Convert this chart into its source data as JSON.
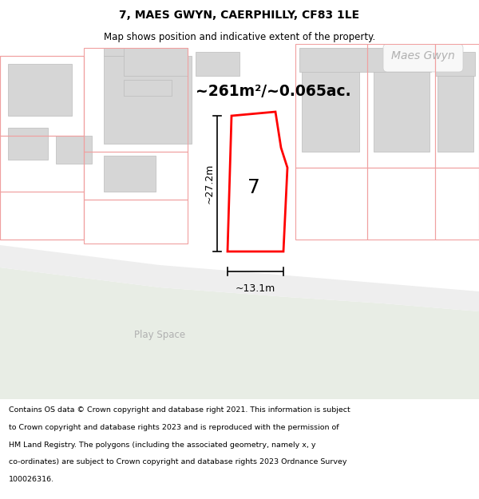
{
  "title": "7, MAES GWYN, CAERPHILLY, CF83 1LE",
  "subtitle": "Map shows position and indicative extent of the property.",
  "area_text": "~261m²/~0.065ac.",
  "label_7": "7",
  "dim_height": "~27.2m",
  "dim_width": "~13.1m",
  "street_label": "Maes Gwyn",
  "play_space_label": "Play Space",
  "bg_map_color": "#f8f8f8",
  "bg_green_color": "#e8ede5",
  "building_gray": "#d6d6d6",
  "building_edge": "#bbbbbb",
  "pink_line": "#f0a0a0",
  "red_polygon_color": "#ff0000",
  "footer_lines": [
    "Contains OS data © Crown copyright and database right 2021. This information is subject",
    "to Crown copyright and database rights 2023 and is reproduced with the permission of",
    "HM Land Registry. The polygons (including the associated geometry, namely x, y",
    "co-ordinates) are subject to Crown copyright and database rights 2023 Ordnance Survey",
    "100026316."
  ]
}
